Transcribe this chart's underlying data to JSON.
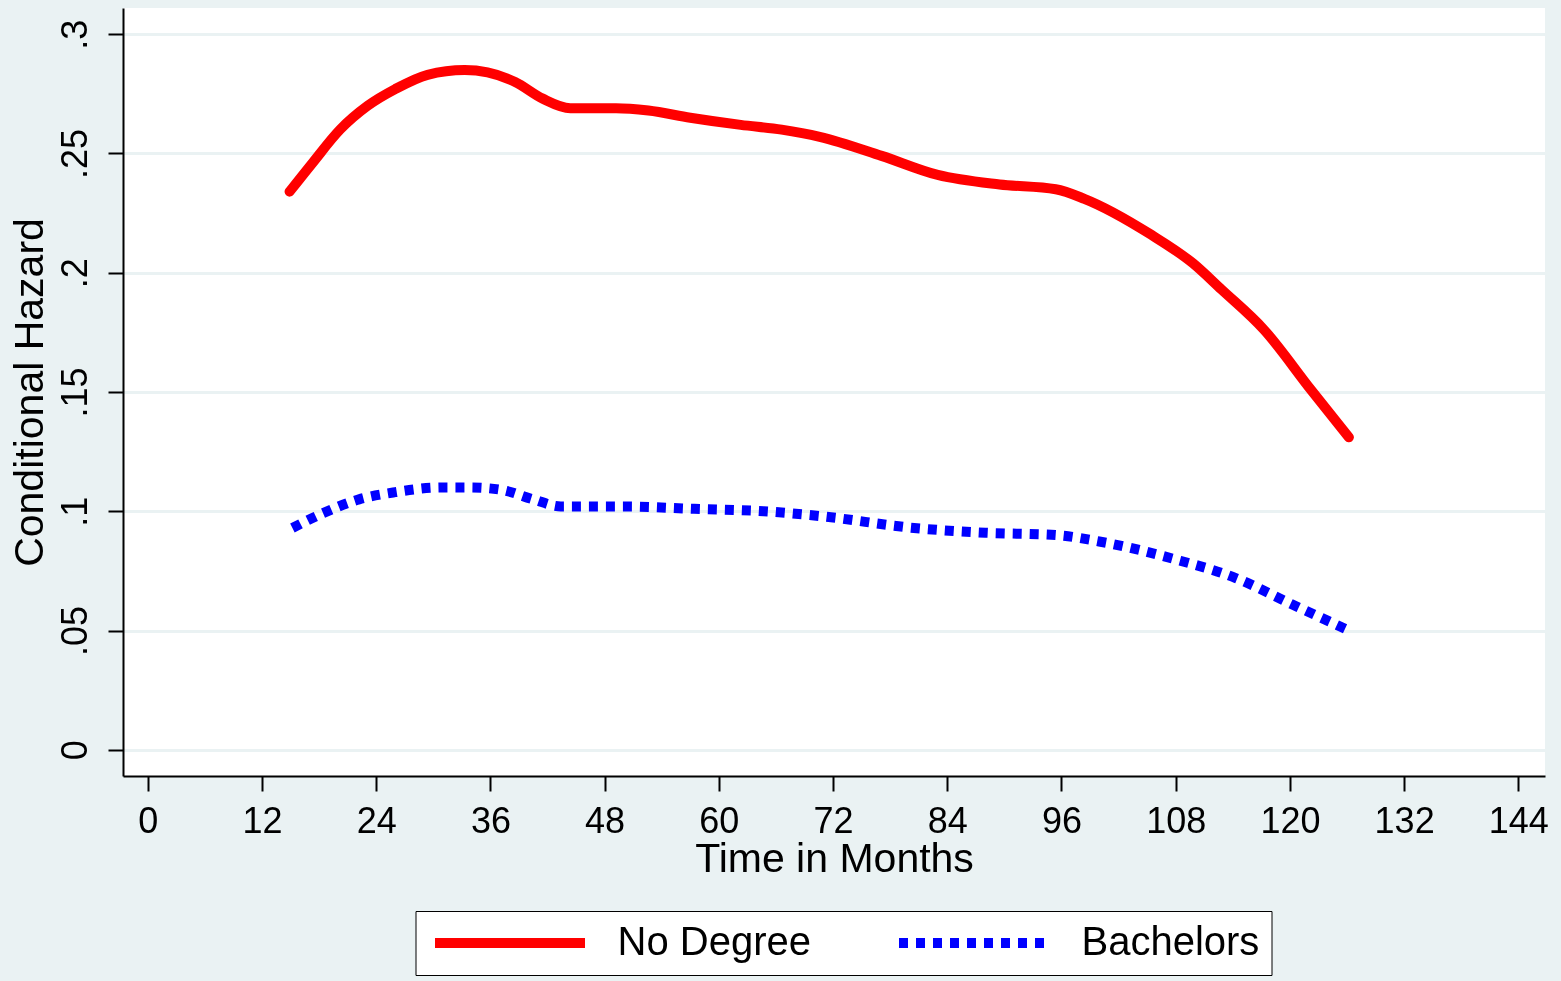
{
  "chart_data": {
    "type": "line",
    "xlabel": "Time in Months",
    "ylabel": "Conditional Hazard",
    "xlim": [
      -2.6,
      146.8
    ],
    "ylim": [
      -0.011,
      0.311
    ],
    "xticks": [
      0,
      12,
      24,
      36,
      48,
      60,
      72,
      84,
      96,
      108,
      120,
      132,
      144
    ],
    "yticks": [
      {
        "value": 0,
        "label": "0"
      },
      {
        "value": 0.05,
        "label": ".05"
      },
      {
        "value": 0.1,
        "label": ".1"
      },
      {
        "value": 0.15,
        "label": ".15"
      },
      {
        "value": 0.2,
        "label": ".2"
      },
      {
        "value": 0.25,
        "label": ".25"
      },
      {
        "value": 0.3,
        "label": ".3"
      }
    ],
    "grid": "y",
    "legend": "bottom",
    "series": [
      {
        "name": "No Degree",
        "color": "#ff0000",
        "line_style": "solid",
        "x": [
          14.9,
          17.3,
          20.2,
          23.1,
          26.0,
          29.4,
          33.3,
          35.7,
          38.6,
          41.5,
          44.4,
          49.2,
          52.6,
          57.0,
          62.3,
          66.6,
          70.6,
          77.1,
          83.0,
          89.5,
          95.4,
          98.4,
          105.4,
          109.8,
          112.8,
          117.3,
          122.2,
          126.2
        ],
        "values": [
          0.234,
          0.246,
          0.26,
          0.27,
          0.277,
          0.283,
          0.285,
          0.284,
          0.28,
          0.273,
          0.269,
          0.269,
          0.268,
          0.265,
          0.262,
          0.26,
          0.257,
          0.249,
          0.241,
          0.237,
          0.235,
          0.231,
          0.216,
          0.204,
          0.193,
          0.176,
          0.151,
          0.131
        ]
      },
      {
        "name": "Bachelors",
        "color": "#0000ff",
        "line_style": "dotted",
        "x": [
          15.2,
          18.3,
          22.2,
          26.0,
          30.9,
          33.8,
          37.1,
          40.5,
          43.4,
          50.2,
          57.4,
          64.7,
          70.6,
          80.5,
          88.0,
          95.4,
          100.4,
          107.8,
          114.3,
          120.2,
          126.2
        ],
        "values": [
          0.093,
          0.099,
          0.105,
          0.108,
          0.11,
          0.11,
          0.109,
          0.105,
          0.102,
          0.102,
          0.101,
          0.1,
          0.098,
          0.093,
          0.091,
          0.09,
          0.087,
          0.08,
          0.072,
          0.061,
          0.05
        ]
      }
    ]
  }
}
